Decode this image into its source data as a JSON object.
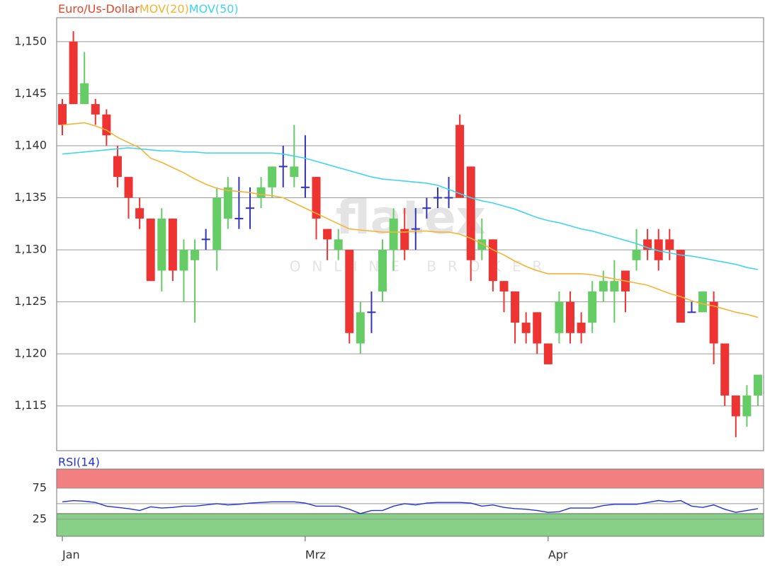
{
  "chart_data": [
    {
      "type": "candlestick",
      "series": [
        {
          "name": "Euro/Us-Dollar",
          "color": "#e8442a",
          "up_color": "#66cc66",
          "down_color": "#ee3333",
          "doji_color": "#3333bb",
          "open": [
            1.144,
            1.15,
            1.144,
            1.144,
            1.143,
            1.139,
            1.137,
            1.134,
            1.133,
            1.128,
            1.133,
            1.128,
            1.129,
            1.131,
            1.13,
            1.133,
            1.133,
            1.134,
            1.135,
            1.136,
            1.138,
            1.137,
            1.136,
            1.137,
            1.132,
            1.13,
            1.13,
            1.121,
            1.124,
            1.126,
            1.13,
            1.132,
            1.132,
            1.134,
            1.135,
            1.135,
            1.142,
            1.138,
            1.13,
            1.131,
            1.127,
            1.126,
            1.123,
            1.124,
            1.121,
            1.122,
            1.125,
            1.123,
            1.123,
            1.126,
            1.126,
            1.128,
            1.129,
            1.131,
            1.131,
            1.131,
            1.13,
            1.124,
            1.124,
            1.125,
            1.121,
            1.116,
            1.114,
            1.116
          ],
          "high": [
            1.1445,
            1.151,
            1.149,
            1.1445,
            1.1435,
            1.14,
            1.137,
            1.135,
            1.133,
            1.134,
            1.133,
            1.131,
            1.131,
            1.132,
            1.136,
            1.137,
            1.137,
            1.136,
            1.137,
            1.138,
            1.14,
            1.142,
            1.141,
            1.137,
            1.132,
            1.132,
            1.13,
            1.125,
            1.126,
            1.131,
            1.134,
            1.134,
            1.134,
            1.135,
            1.136,
            1.137,
            1.143,
            1.138,
            1.133,
            1.131,
            1.127,
            1.126,
            1.124,
            1.124,
            1.121,
            1.126,
            1.126,
            1.124,
            1.127,
            1.128,
            1.129,
            1.128,
            1.132,
            1.132,
            1.132,
            1.132,
            1.13,
            1.125,
            1.126,
            1.126,
            1.121,
            1.116,
            1.117,
            1.118
          ],
          "low": [
            1.141,
            1.144,
            1.144,
            1.142,
            1.14,
            1.136,
            1.133,
            1.132,
            1.127,
            1.126,
            1.127,
            1.125,
            1.123,
            1.13,
            1.128,
            1.132,
            1.132,
            1.132,
            1.134,
            1.135,
            1.136,
            1.136,
            1.135,
            1.131,
            1.129,
            1.129,
            1.121,
            1.12,
            1.122,
            1.125,
            1.128,
            1.129,
            1.13,
            1.133,
            1.134,
            1.134,
            1.135,
            1.127,
            1.129,
            1.126,
            1.124,
            1.121,
            1.121,
            1.12,
            1.119,
            1.121,
            1.121,
            1.121,
            1.122,
            1.125,
            1.123,
            1.124,
            1.128,
            1.129,
            1.128,
            1.129,
            1.123,
            1.124,
            1.124,
            1.119,
            1.115,
            1.112,
            1.113,
            1.115
          ],
          "close": [
            1.142,
            1.144,
            1.146,
            1.143,
            1.141,
            1.137,
            1.135,
            1.133,
            1.127,
            1.133,
            1.128,
            1.13,
            1.13,
            1.131,
            1.135,
            1.136,
            1.133,
            1.134,
            1.136,
            1.138,
            1.138,
            1.138,
            1.136,
            1.133,
            1.131,
            1.131,
            1.122,
            1.124,
            1.124,
            1.13,
            1.133,
            1.13,
            1.132,
            1.134,
            1.135,
            1.135,
            1.135,
            1.129,
            1.131,
            1.127,
            1.126,
            1.123,
            1.122,
            1.121,
            1.119,
            1.125,
            1.122,
            1.122,
            1.126,
            1.127,
            1.127,
            1.126,
            1.13,
            1.13,
            1.129,
            1.13,
            1.123,
            1.124,
            1.126,
            1.121,
            1.116,
            1.114,
            1.116,
            1.118
          ]
        },
        {
          "name": "MOV(20)",
          "color": "#f5b335",
          "values": [
            1.142,
            1.1421,
            1.1422,
            1.1419,
            1.1415,
            1.1408,
            1.1403,
            1.1398,
            1.1388,
            1.1384,
            1.1379,
            1.1374,
            1.1368,
            1.1363,
            1.1359,
            1.1357,
            1.1356,
            1.1355,
            1.1353,
            1.1352,
            1.135,
            1.1345,
            1.134,
            1.1335,
            1.133,
            1.1325,
            1.132,
            1.1319,
            1.1318,
            1.1317,
            1.1317,
            1.1317,
            1.1318,
            1.1318,
            1.1317,
            1.1317,
            1.1315,
            1.1311,
            1.1306,
            1.13,
            1.1295,
            1.1289,
            1.1284,
            1.128,
            1.1277,
            1.1277,
            1.1277,
            1.1277,
            1.1276,
            1.1274,
            1.1272,
            1.127,
            1.1268,
            1.1266,
            1.1262,
            1.1258,
            1.1255,
            1.1251,
            1.1248,
            1.1246,
            1.1243,
            1.124,
            1.1238,
            1.1235
          ]
        },
        {
          "name": "MOV(50)",
          "color": "#3fd4f0",
          "values": [
            1.1392,
            1.1393,
            1.1394,
            1.1395,
            1.1396,
            1.1397,
            1.1398,
            1.1397,
            1.1396,
            1.1395,
            1.1395,
            1.1394,
            1.1394,
            1.1393,
            1.1393,
            1.1393,
            1.1393,
            1.1393,
            1.1393,
            1.1393,
            1.1392,
            1.139,
            1.1388,
            1.1385,
            1.1382,
            1.1379,
            1.1376,
            1.1373,
            1.137,
            1.1368,
            1.1367,
            1.1366,
            1.1365,
            1.1364,
            1.1362,
            1.1358,
            1.1354,
            1.135,
            1.1347,
            1.1345,
            1.1342,
            1.1339,
            1.1335,
            1.1331,
            1.1328,
            1.1326,
            1.1323,
            1.132,
            1.1318,
            1.1315,
            1.1312,
            1.1309,
            1.1306,
            1.1302,
            1.1299,
            1.1297,
            1.1295,
            1.1294,
            1.1292,
            1.129,
            1.1288,
            1.1286,
            1.1283,
            1.1281
          ]
        }
      ],
      "ylim": [
        1.1107,
        1.1523
      ],
      "yticks": [
        {
          "value": 1.115,
          "label": "1,115"
        },
        {
          "value": 1.12,
          "label": "1,120"
        },
        {
          "value": 1.125,
          "label": "1,125"
        },
        {
          "value": 1.13,
          "label": "1,130"
        },
        {
          "value": 1.135,
          "label": "1,135"
        },
        {
          "value": 1.14,
          "label": "1,140"
        },
        {
          "value": 1.145,
          "label": "1,145"
        },
        {
          "value": 1.15,
          "label": "1,150"
        }
      ],
      "grid": true,
      "watermark": "flatex",
      "watermark_sub": "ONLINE BROKER"
    },
    {
      "type": "line",
      "categories": [
        "Jan",
        null,
        null,
        null,
        null,
        null,
        null,
        null,
        null,
        null,
        null,
        null,
        null,
        null,
        null,
        null,
        null,
        null,
        null,
        null,
        null,
        null,
        "Mrz",
        null,
        null,
        null,
        null,
        null,
        null,
        null,
        null,
        null,
        null,
        null,
        null,
        null,
        null,
        null,
        null,
        null,
        null,
        null,
        null,
        null,
        "Apr",
        null,
        null,
        null,
        null,
        null,
        null,
        null,
        null,
        null,
        null,
        null,
        null,
        null,
        null,
        null,
        null,
        null,
        null,
        null
      ],
      "series": [
        {
          "name": "RSI(14)",
          "color": "#2233dd",
          "values": [
            53,
            55,
            54,
            52,
            46,
            44,
            42,
            39,
            45,
            43,
            44,
            46,
            46,
            48,
            50,
            48,
            49,
            51,
            52,
            53,
            53,
            53,
            51,
            46,
            46,
            46,
            41,
            34,
            39,
            39,
            46,
            50,
            48,
            51,
            52,
            52,
            52,
            51,
            46,
            48,
            44,
            42,
            41,
            39,
            36,
            37,
            43,
            43,
            43,
            47,
            49,
            49,
            49,
            52,
            55,
            53,
            55,
            46,
            44,
            48,
            41,
            36,
            39,
            42
          ]
        }
      ],
      "ylim": [
        -2.5,
        105.7
      ],
      "yticks": [
        25,
        75
      ],
      "bands": [
        {
          "from": 75,
          "to": 105.7,
          "color": "#f28080"
        },
        {
          "from": -2.5,
          "to": 34,
          "color": "#88d088"
        }
      ],
      "hlines": [
        50
      ]
    }
  ]
}
